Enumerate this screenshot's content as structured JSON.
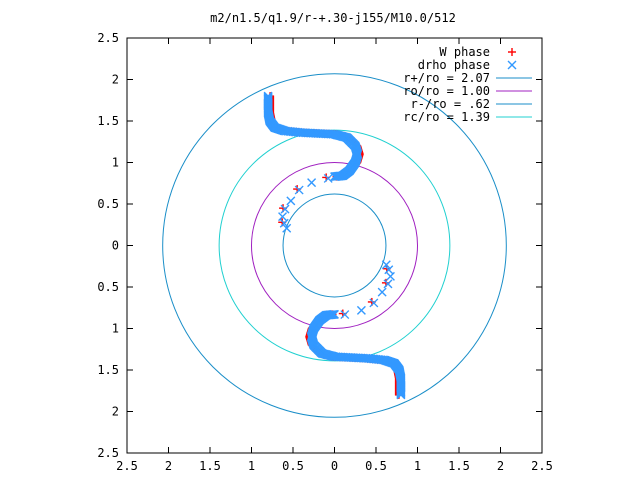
{
  "chart_data": {
    "type": "scatter",
    "title": "m2/n1.5/q1.9/r-+.30-j155/M10.0/512",
    "xlim": [
      -2.5,
      2.5
    ],
    "ylim": [
      -2.5,
      2.5
    ],
    "x_ticks": [
      -2.5,
      -2,
      -1.5,
      -1,
      -0.5,
      0,
      0.5,
      1,
      1.5,
      2,
      2.5
    ],
    "y_ticks": [
      -2.5,
      -2,
      -1.5,
      -1,
      -0.5,
      0,
      0.5,
      1,
      1.5,
      2,
      2.5
    ],
    "x_tick_labels": [
      "2.5",
      "2",
      "1.5",
      "1",
      "0.5",
      "0",
      "0.5",
      "1",
      "1.5",
      "2",
      "2.5"
    ],
    "y_tick_labels": [
      "2.5",
      "2",
      "1.5",
      "1",
      "0.5",
      "0",
      "0.5",
      "1",
      "1.5",
      "2",
      "2.5"
    ],
    "legend_position": "top-right",
    "circles": [
      {
        "name": "r+/ro = 2.07",
        "radius": 2.07,
        "color": "#1a8ec8"
      },
      {
        "name": "ro/ro = 1.00",
        "radius": 1.0,
        "color": "#a020c0"
      },
      {
        "name": "r-/ro = .62",
        "radius": 0.62,
        "color": "#1a8ec8"
      },
      {
        "name": "rc/ro = 1.39",
        "radius": 1.39,
        "color": "#20d0d0"
      }
    ],
    "series": [
      {
        "name": "W phase",
        "marker": "+",
        "color": "#ff0000"
      },
      {
        "name": "drho phase",
        "marker": "x",
        "color": "#3399ff"
      }
    ],
    "arm_points_upper": [
      [
        -0.8,
        1.8
      ],
      [
        -0.8,
        1.7
      ],
      [
        -0.8,
        1.6
      ],
      [
        -0.78,
        1.5
      ],
      [
        -0.72,
        1.42
      ],
      [
        -0.6,
        1.38
      ],
      [
        -0.4,
        1.36
      ],
      [
        -0.2,
        1.35
      ],
      [
        0.0,
        1.34
      ],
      [
        0.15,
        1.3
      ],
      [
        0.25,
        1.2
      ],
      [
        0.28,
        1.1
      ],
      [
        0.25,
        1.0
      ],
      [
        0.18,
        0.9
      ],
      [
        0.1,
        0.84
      ],
      [
        0.0,
        0.83
      ]
    ],
    "sparse_points_upper": [
      [
        -0.1,
        0.82
      ],
      [
        -0.3,
        0.77
      ],
      [
        -0.45,
        0.68
      ],
      [
        -0.55,
        0.55
      ],
      [
        -0.62,
        0.45
      ],
      [
        -0.65,
        0.36
      ],
      [
        -0.63,
        0.28
      ],
      [
        -0.6,
        0.22
      ]
    ],
    "arm_points_lower": [
      [
        0.8,
        -1.8
      ],
      [
        0.8,
        -1.7
      ],
      [
        0.8,
        -1.6
      ],
      [
        0.78,
        -1.5
      ],
      [
        0.72,
        -1.42
      ],
      [
        0.6,
        -1.38
      ],
      [
        0.4,
        -1.36
      ],
      [
        0.2,
        -1.35
      ],
      [
        0.0,
        -1.34
      ],
      [
        -0.15,
        -1.3
      ],
      [
        -0.25,
        -1.2
      ],
      [
        -0.28,
        -1.1
      ],
      [
        -0.25,
        -1.0
      ],
      [
        -0.18,
        -0.9
      ],
      [
        -0.1,
        -0.84
      ],
      [
        0.0,
        -0.83
      ]
    ],
    "sparse_points_lower": [
      [
        0.1,
        -0.82
      ],
      [
        0.3,
        -0.77
      ],
      [
        0.45,
        -0.68
      ],
      [
        0.55,
        -0.55
      ],
      [
        0.62,
        -0.45
      ],
      [
        0.65,
        -0.36
      ],
      [
        0.63,
        -0.28
      ],
      [
        0.6,
        -0.22
      ]
    ]
  }
}
